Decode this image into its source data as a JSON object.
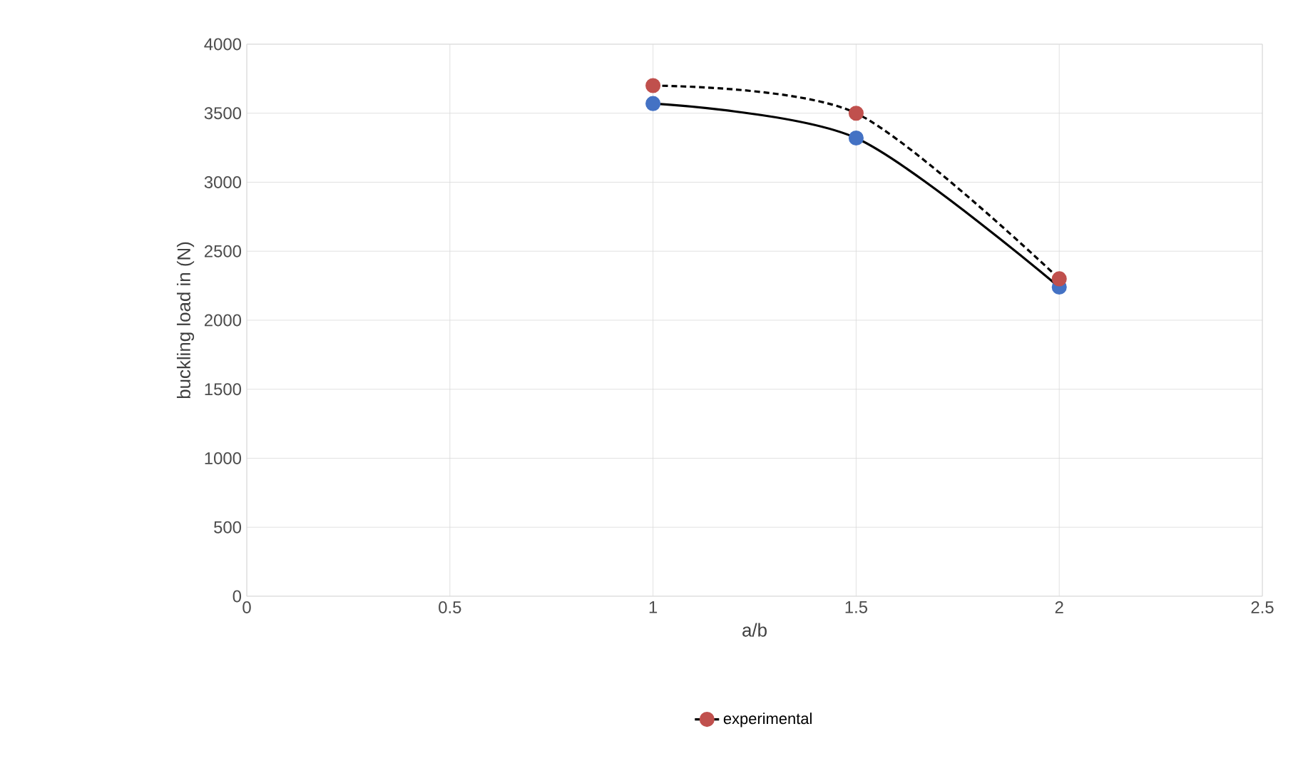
{
  "chart_data": {
    "type": "line",
    "xlabel": "a/b",
    "ylabel": "buckling load in (N)",
    "xlim": [
      0,
      2.5
    ],
    "xticks": [
      0,
      0.5,
      1,
      1.5,
      2,
      2.5
    ],
    "ylim": [
      0,
      4000
    ],
    "yticks": [
      0,
      500,
      1000,
      1500,
      2000,
      2500,
      3000,
      3500,
      4000
    ],
    "grid": true,
    "legend": "bottom",
    "marker": "circle",
    "series": [
      {
        "color": "#4472c4",
        "line_style": "solid",
        "x": [
          1,
          1.5,
          2
        ],
        "values": [
          3570,
          3320,
          2240
        ]
      },
      {
        "name": "experimental",
        "color": "#c0504d",
        "line_style": "dashed",
        "x": [
          1,
          1.5,
          2
        ],
        "values": [
          3700,
          3500,
          2300
        ]
      }
    ]
  }
}
